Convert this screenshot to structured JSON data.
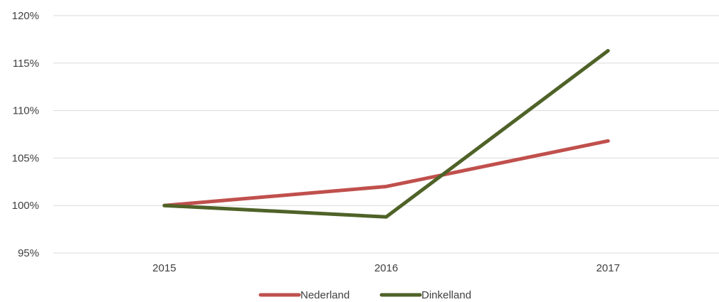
{
  "chart_data": {
    "type": "line",
    "title": "",
    "xlabel": "",
    "ylabel": "",
    "categories": [
      "2015",
      "2016",
      "2017"
    ],
    "y_ticks": [
      "95%",
      "100%",
      "105%",
      "110%",
      "115%",
      "120%"
    ],
    "ylim": [
      95,
      120
    ],
    "y_unit": "%",
    "grid": true,
    "legend_position": "bottom",
    "series": [
      {
        "name": "Nederland",
        "color": "#c0504d",
        "values": [
          100,
          102.0,
          106.8
        ]
      },
      {
        "name": "Dinkelland",
        "color": "#4f6228",
        "values": [
          100,
          98.8,
          116.3
        ]
      }
    ]
  }
}
